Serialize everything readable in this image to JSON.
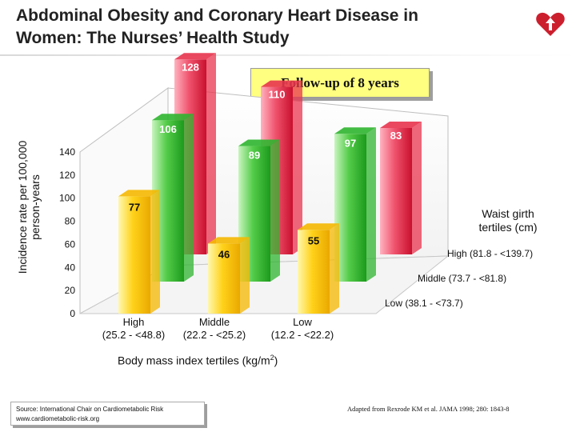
{
  "slide": {
    "title_line1": "Abdominal Obesity and Coronary Heart Disease in",
    "title_line2": "Women: The Nurses’ Health Study",
    "followup": "Follow-up of 8 years",
    "ylabel_line1": "Incidence rate per 100,000",
    "ylabel_line2": "person-years",
    "xaxis_title": "Body mass index tertiles (kg/m",
    "xaxis_title_sup": "2",
    "xaxis_title_end": ")",
    "legend_title_line1": "Waist girth",
    "legend_title_line2": "tertiles (cm)",
    "source_line1": "Source: International Chair on Cardiometabolic Risk",
    "source_line2": "www.cardiometabolic-risk.org",
    "adapted": "Adapted from Rexrode KM et al. JAMA 1998; 280: 1843-8",
    "colors": {
      "high": "#e8344e",
      "middle": "#2fb52f",
      "low": "#f5b800",
      "accent": "#cc1f2e"
    },
    "logo_icon": "heart-arrow-logo-icon"
  },
  "chart_data": {
    "type": "bar",
    "title": "",
    "xlabel": "Body mass index tertiles (kg/m2)",
    "ylabel": "Incidence rate per 100,000 person-years",
    "ylim": [
      0,
      140
    ],
    "yticks": [
      0,
      20,
      40,
      60,
      80,
      100,
      120,
      140
    ],
    "categories_top": [
      "High",
      "Middle",
      "Low"
    ],
    "categories_bottom": [
      "(25.2 - <48.8)",
      "(22.2 - <25.2)",
      "(12.2 - <22.2)"
    ],
    "legend_title": "Waist girth tertiles (cm)",
    "series": [
      {
        "name": "High (81.8 - <139.7)",
        "values": [
          128,
          110,
          83
        ]
      },
      {
        "name": "Middle (73.7 - <81.8)",
        "values": [
          106,
          89,
          97
        ]
      },
      {
        "name": "Low (38.1 - <73.7)",
        "values": [
          77,
          46,
          55
        ]
      }
    ],
    "data_labels": true,
    "grid": false,
    "legend_position": "right"
  }
}
